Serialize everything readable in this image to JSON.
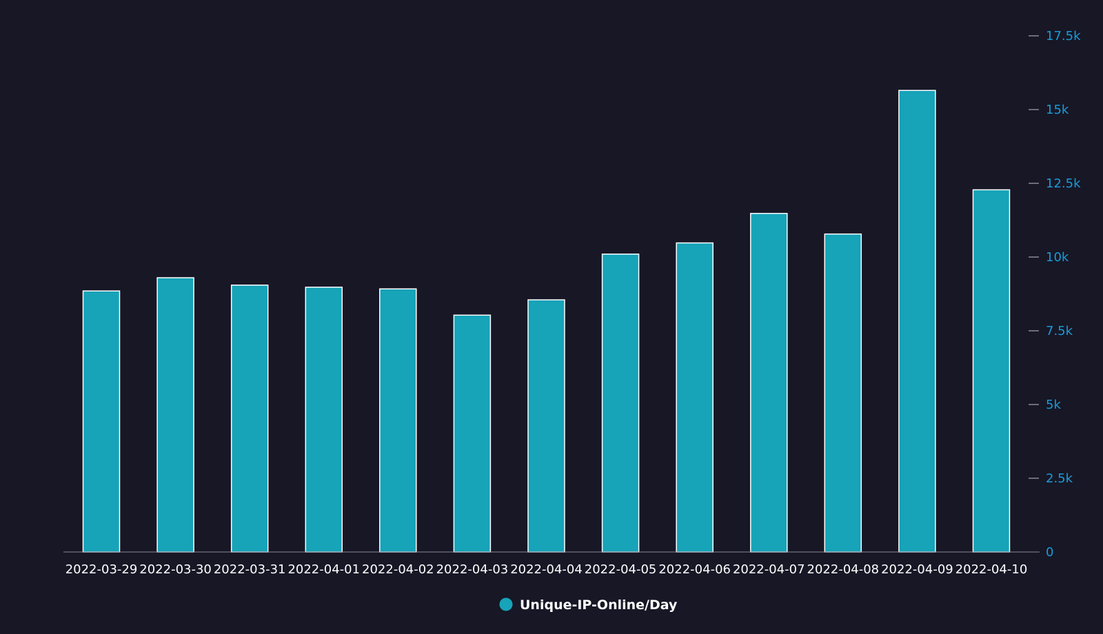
{
  "chart_data": {
    "type": "bar",
    "categories": [
      "2022-03-29",
      "2022-03-30",
      "2022-03-31",
      "2022-04-01",
      "2022-04-02",
      "2022-04-03",
      "2022-04-04",
      "2022-04-05",
      "2022-04-06",
      "2022-04-07",
      "2022-04-08",
      "2022-04-09",
      "2022-04-10"
    ],
    "series": [
      {
        "name": "Unique-IP-Online/Day",
        "values": [
          8850,
          9300,
          9050,
          8980,
          8920,
          8030,
          8550,
          10100,
          10480,
          11480,
          10780,
          15650,
          12280
        ]
      }
    ],
    "ylim": [
      0,
      17500
    ],
    "yticks": [
      0,
      2500,
      5000,
      7500,
      10000,
      12500,
      15000,
      17500
    ],
    "ytick_labels": [
      "0",
      "2.5k",
      "5k",
      "7.5k",
      "10k",
      "12.5k",
      "15k",
      "17.5k"
    ],
    "y_axis_side": "right",
    "grid": false,
    "legend_position": "bottom-center",
    "colors": {
      "background": "#171726",
      "bar_fill": "#17a3b8",
      "bar_stroke": "#ffffff",
      "axis_text": "#1a9bd7",
      "category_text": "#ffffff",
      "axis_line": "#8a8a96"
    }
  }
}
